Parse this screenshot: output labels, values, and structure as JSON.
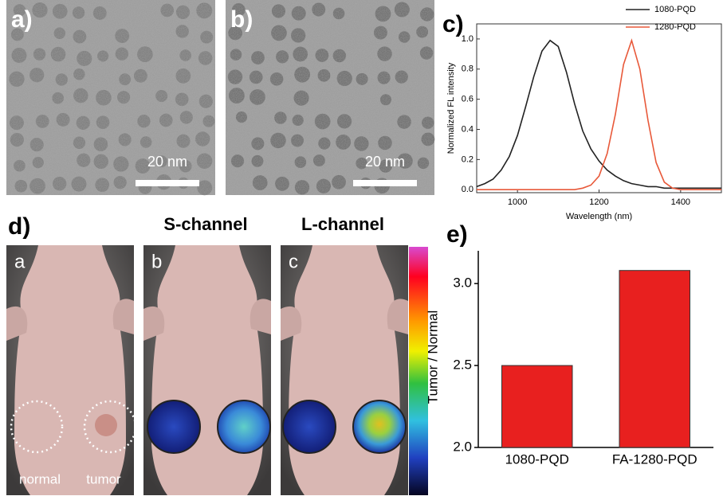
{
  "panel_labels": [
    "a)",
    "b)",
    "c)",
    "d)",
    "e)"
  ],
  "tem": [
    {
      "scale_bar": "20 nm"
    },
    {
      "scale_bar": "20 nm"
    }
  ],
  "imaging": {
    "channels": [
      "S-channel",
      "L-channel"
    ],
    "photo_labels": [
      "a",
      "b",
      "c"
    ],
    "regions": [
      "normal",
      "tumor"
    ]
  },
  "chart_data": [
    {
      "type": "line",
      "x": [
        900,
        920,
        940,
        960,
        980,
        1000,
        1020,
        1040,
        1060,
        1080,
        1100,
        1120,
        1140,
        1160,
        1180,
        1200,
        1220,
        1240,
        1260,
        1280,
        1300,
        1320,
        1340,
        1360,
        1380,
        1400,
        1420,
        1440,
        1460,
        1480,
        1500
      ],
      "series": [
        {
          "name": "1080-PQD",
          "color": "#222222",
          "values": [
            0.02,
            0.04,
            0.07,
            0.13,
            0.22,
            0.36,
            0.55,
            0.75,
            0.92,
            0.99,
            0.95,
            0.78,
            0.57,
            0.39,
            0.27,
            0.19,
            0.13,
            0.09,
            0.06,
            0.04,
            0.03,
            0.02,
            0.02,
            0.01,
            0.01,
            0.01,
            0.01,
            0.01,
            0.01,
            0.01,
            0.01
          ]
        },
        {
          "name": "1280-PQD",
          "color": "#e8593a",
          "values": [
            0,
            0,
            0,
            0,
            0,
            0,
            0,
            0,
            0,
            0,
            0,
            0,
            0,
            0.01,
            0.03,
            0.09,
            0.24,
            0.5,
            0.83,
            0.99,
            0.8,
            0.46,
            0.18,
            0.05,
            0.01,
            0,
            0,
            0,
            0,
            0,
            0
          ]
        }
      ],
      "xlabel": "Wavelength (nm)",
      "ylabel": "Normalized FL intensity",
      "xlim": [
        900,
        1500
      ],
      "ylim": [
        -0.02,
        1.1
      ],
      "xticks": [
        1000,
        1200,
        1400
      ],
      "yticks": [
        {
          "value": 0,
          "label": "0.0"
        },
        {
          "value": 0.2,
          "label": "0.2"
        },
        {
          "value": 0.4,
          "label": "0.4"
        },
        {
          "value": 0.6,
          "label": "0.6"
        },
        {
          "value": 0.8,
          "label": "0.8"
        },
        {
          "value": 1,
          "label": "1.0"
        }
      ],
      "legend": "upper right"
    },
    {
      "type": "bar",
      "categories": [
        "1080-PQD",
        "FA-1280-PQD"
      ],
      "values": [
        2.5,
        3.08
      ],
      "color": "#e8201f",
      "ylabel": "Tumor / Normal",
      "ylim": [
        2.0,
        3.2
      ],
      "yticks": [
        {
          "value": 2,
          "label": "2.0"
        },
        {
          "value": 2.5,
          "label": "2.5"
        },
        {
          "value": 3,
          "label": "3.0"
        }
      ]
    }
  ]
}
